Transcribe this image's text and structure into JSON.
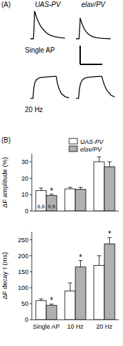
{
  "chart_data": [
    {
      "type": "line",
      "label": "(A)",
      "title": "UAS-PV",
      "annotations": [
        "Single AP"
      ],
      "tick_labels": false,
      "x": [
        0,
        30,
        38,
        42,
        50,
        60,
        80,
        100,
        130,
        160,
        200,
        250,
        300,
        350
      ],
      "series": [
        {
          "color": "#000000",
          "values": [
            0,
            0,
            0.5,
            1,
            0.92,
            0.8,
            0.62,
            0.48,
            0.33,
            0.22,
            0.13,
            0.07,
            0.04,
            0.02
          ]
        }
      ],
      "xlim": [
        0,
        350
      ],
      "ylim": [
        -0.05,
        1.05
      ]
    },
    {
      "type": "line",
      "title": "elav/PV",
      "tick_labels": false,
      "x": [
        0,
        30,
        38,
        42,
        50,
        60,
        80,
        100,
        130,
        160,
        200,
        250,
        300,
        350
      ],
      "series": [
        {
          "color": "#000000",
          "values": [
            0,
            0,
            0.4,
            0.75,
            0.66,
            0.55,
            0.38,
            0.26,
            0.15,
            0.09,
            0.04,
            0.02,
            0.01,
            0
          ]
        }
      ],
      "xlim": [
        0,
        350
      ],
      "ylim": [
        -0.05,
        1.05
      ]
    },
    {
      "type": "line",
      "annotations": [
        "20 Hz"
      ],
      "tick_labels": false,
      "x": [
        0,
        100,
        130,
        180,
        250,
        350,
        500,
        700,
        900,
        1000,
        1040,
        1100,
        1200,
        1350,
        1500
      ],
      "series": [
        {
          "color": "#000000",
          "values": [
            0,
            0,
            0.4,
            0.62,
            0.72,
            0.78,
            0.8,
            0.82,
            0.83,
            0.83,
            0.6,
            0.38,
            0.18,
            0.06,
            0.02
          ]
        }
      ],
      "xlim": [
        0,
        1500
      ],
      "ylim": [
        -0.05,
        1.05
      ]
    },
    {
      "type": "line",
      "tick_labels": false,
      "x": [
        0,
        100,
        130,
        180,
        250,
        350,
        500,
        700,
        900,
        1000,
        1040,
        1100,
        1200,
        1350,
        1500
      ],
      "series": [
        {
          "color": "#000000",
          "values": [
            0,
            0,
            0.35,
            0.58,
            0.7,
            0.77,
            0.8,
            0.82,
            0.83,
            0.83,
            0.68,
            0.5,
            0.3,
            0.12,
            0.05
          ]
        }
      ],
      "xlim": [
        0,
        1500
      ],
      "ylim": [
        -0.05,
        1.05
      ]
    },
    {
      "type": "bar",
      "label": "(B)",
      "y_label": "ΔF amplitude (%)",
      "legend": "top",
      "tick_labels": "y",
      "categories": [
        null,
        null,
        null
      ],
      "series": [
        {
          "name": "UAS-PV",
          "color": "#ffffff",
          "values": [
            12.5,
            13.5,
            30
          ],
          "errors": [
            1.5,
            1.0,
            3.0
          ],
          "n": [
            "6,6",
            null,
            null
          ]
        },
        {
          "name": "elav/PV",
          "color": "#b0b0b0",
          "values": [
            9.5,
            13.2,
            27
          ],
          "errors": [
            0.8,
            1.3,
            3.0
          ],
          "n": [
            "9,9",
            null,
            null
          ],
          "annotations": [
            "*",
            null,
            null
          ]
        }
      ],
      "ylim": [
        0,
        35
      ],
      "yticks": [
        0,
        10,
        20,
        30
      ]
    },
    {
      "type": "bar",
      "y_label": "ΔF decay τ (ms)",
      "categories": [
        "Single AP",
        "10 Hz",
        "20 Hz"
      ],
      "series": [
        {
          "color": "#ffffff",
          "values": [
            60,
            90,
            170
          ],
          "errors": [
            5,
            25,
            30
          ]
        },
        {
          "color": "#b0b0b0",
          "values": [
            45,
            165,
            237
          ],
          "errors": [
            4,
            20,
            20
          ],
          "annotations": [
            "*",
            "*",
            "*"
          ]
        }
      ],
      "ylim": [
        0,
        275
      ],
      "yticks": [
        0,
        50,
        100,
        150,
        200,
        250
      ]
    }
  ]
}
